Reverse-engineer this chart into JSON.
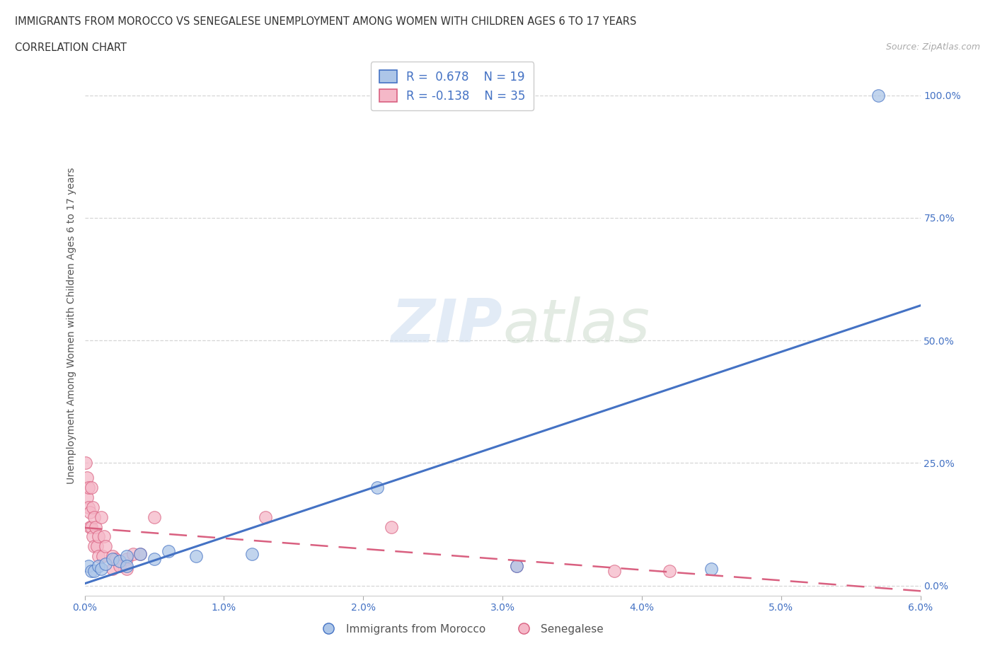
{
  "title_line1": "IMMIGRANTS FROM MOROCCO VS SENEGALESE UNEMPLOYMENT AMONG WOMEN WITH CHILDREN AGES 6 TO 17 YEARS",
  "title_line2": "CORRELATION CHART",
  "source_text": "Source: ZipAtlas.com",
  "xlabel": "Immigrants from Morocco",
  "ylabel": "Unemployment Among Women with Children Ages 6 to 17 years",
  "xlim": [
    0.0,
    0.06
  ],
  "ylim": [
    -0.02,
    1.08
  ],
  "yticks": [
    0.0,
    0.25,
    0.5,
    0.75,
    1.0
  ],
  "ytick_labels": [
    "0.0%",
    "25.0%",
    "50.0%",
    "75.0%",
    "100.0%"
  ],
  "xticks": [
    0.0,
    0.01,
    0.02,
    0.03,
    0.04,
    0.05,
    0.06
  ],
  "xtick_labels": [
    "0.0%",
    "1.0%",
    "2.0%",
    "3.0%",
    "4.0%",
    "5.0%",
    "6.0%"
  ],
  "watermark": "ZIPatlas",
  "blue_R": 0.678,
  "blue_N": 19,
  "pink_R": -0.138,
  "pink_N": 35,
  "blue_color": "#adc6e8",
  "pink_color": "#f5b8c8",
  "blue_line_color": "#4472c4",
  "pink_line_color": "#d96080",
  "legend_label_color": "#4472c4",
  "blue_scatter": [
    [
      0.0003,
      0.04
    ],
    [
      0.0005,
      0.03
    ],
    [
      0.0007,
      0.03
    ],
    [
      0.001,
      0.04
    ],
    [
      0.0012,
      0.035
    ],
    [
      0.0015,
      0.045
    ],
    [
      0.002,
      0.055
    ],
    [
      0.0025,
      0.05
    ],
    [
      0.003,
      0.06
    ],
    [
      0.003,
      0.04
    ],
    [
      0.004,
      0.065
    ],
    [
      0.005,
      0.055
    ],
    [
      0.006,
      0.07
    ],
    [
      0.008,
      0.06
    ],
    [
      0.012,
      0.065
    ],
    [
      0.021,
      0.2
    ],
    [
      0.031,
      0.04
    ],
    [
      0.045,
      0.035
    ],
    [
      0.057,
      1.0
    ]
  ],
  "pink_scatter": [
    [
      0.0001,
      0.25
    ],
    [
      0.0002,
      0.22
    ],
    [
      0.0002,
      0.18
    ],
    [
      0.0003,
      0.16
    ],
    [
      0.0003,
      0.2
    ],
    [
      0.0004,
      0.15
    ],
    [
      0.0004,
      0.12
    ],
    [
      0.0005,
      0.2
    ],
    [
      0.0005,
      0.12
    ],
    [
      0.0006,
      0.1
    ],
    [
      0.0006,
      0.16
    ],
    [
      0.0007,
      0.14
    ],
    [
      0.0007,
      0.08
    ],
    [
      0.0008,
      0.12
    ],
    [
      0.0009,
      0.08
    ],
    [
      0.001,
      0.06
    ],
    [
      0.001,
      0.1
    ],
    [
      0.0012,
      0.14
    ],
    [
      0.0013,
      0.06
    ],
    [
      0.0014,
      0.1
    ],
    [
      0.0015,
      0.08
    ],
    [
      0.002,
      0.06
    ],
    [
      0.002,
      0.035
    ],
    [
      0.0022,
      0.055
    ],
    [
      0.0025,
      0.04
    ],
    [
      0.003,
      0.055
    ],
    [
      0.003,
      0.035
    ],
    [
      0.0035,
      0.065
    ],
    [
      0.004,
      0.065
    ],
    [
      0.005,
      0.14
    ],
    [
      0.013,
      0.14
    ],
    [
      0.022,
      0.12
    ],
    [
      0.031,
      0.04
    ],
    [
      0.038,
      0.03
    ],
    [
      0.042,
      0.03
    ]
  ],
  "background_color": "#ffffff",
  "grid_color": "#cccccc"
}
